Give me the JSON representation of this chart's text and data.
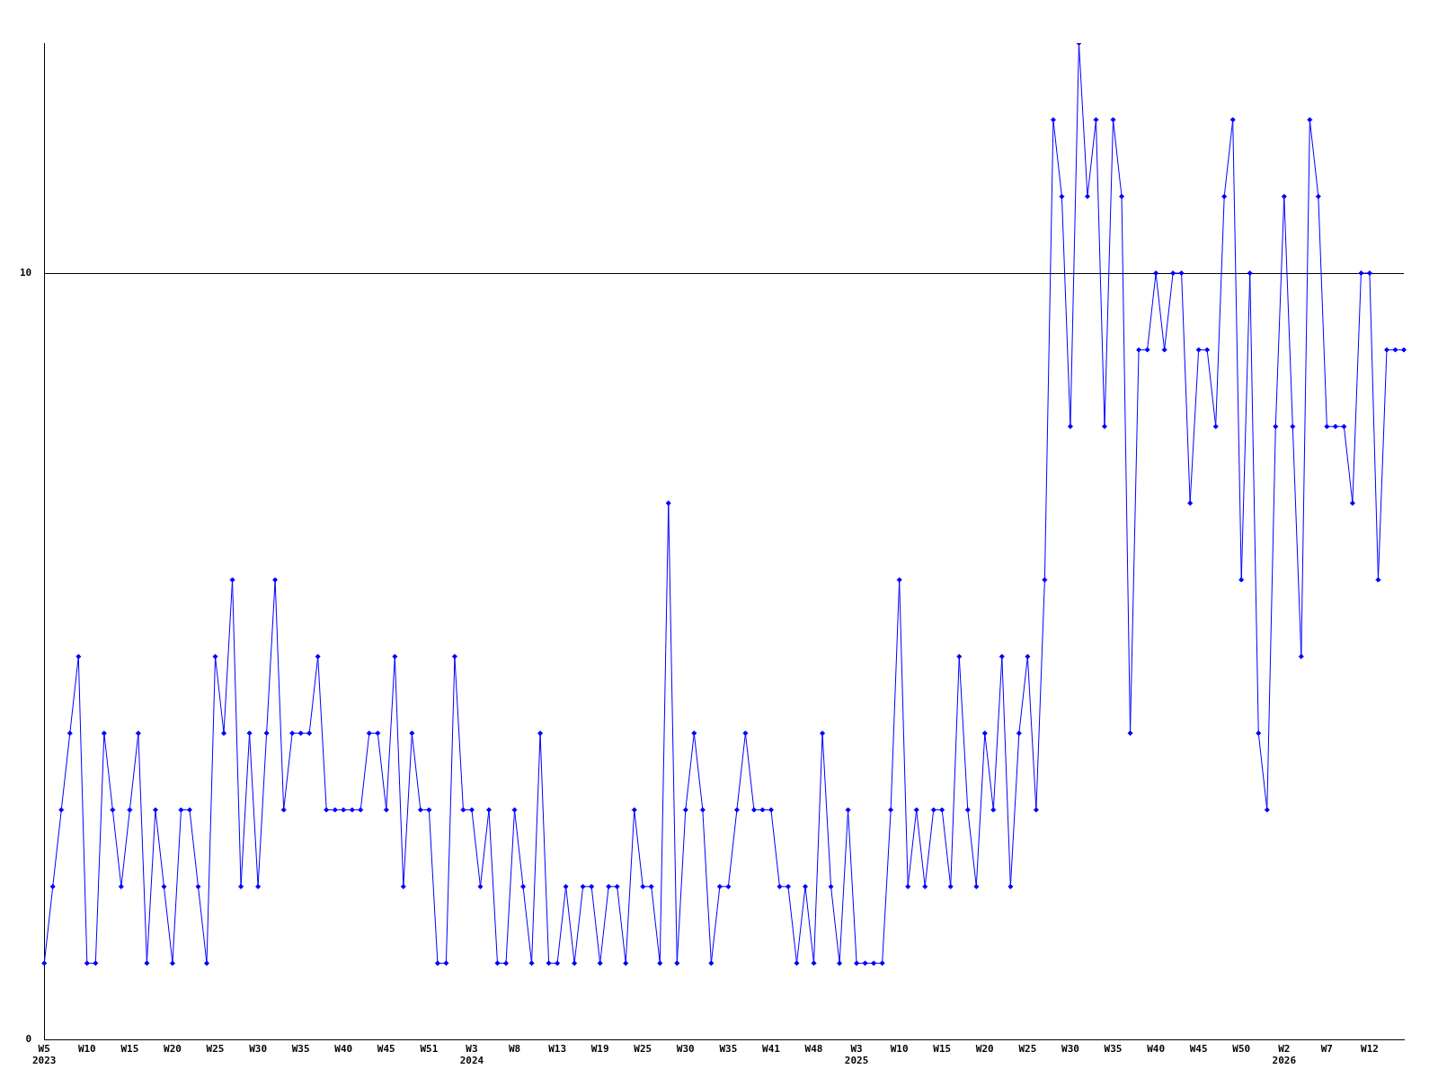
{
  "chart_data": {
    "type": "line",
    "categories": [
      "W5\n2023",
      null,
      null,
      null,
      null,
      "W10",
      null,
      null,
      null,
      null,
      "W15",
      null,
      null,
      null,
      null,
      "W20",
      null,
      null,
      null,
      null,
      "W25",
      null,
      null,
      null,
      null,
      "W30",
      null,
      null,
      null,
      null,
      "W35",
      null,
      null,
      null,
      null,
      "W40",
      null,
      null,
      null,
      null,
      "W45",
      null,
      null,
      null,
      null,
      "W51",
      null,
      null,
      null,
      null,
      "W3\n2024",
      null,
      null,
      null,
      null,
      "W8",
      null,
      null,
      null,
      null,
      "W13",
      null,
      null,
      null,
      null,
      "W19",
      null,
      null,
      null,
      null,
      "W25",
      null,
      null,
      null,
      null,
      "W30",
      null,
      null,
      null,
      null,
      "W35",
      null,
      null,
      null,
      null,
      "W41",
      null,
      null,
      null,
      null,
      "W48",
      null,
      null,
      null,
      null,
      "W3\n2025",
      null,
      null,
      null,
      null,
      "W10",
      null,
      null,
      null,
      null,
      "W15",
      null,
      null,
      null,
      null,
      "W20",
      null,
      null,
      null,
      null,
      "W25",
      null,
      null,
      null,
      null,
      "W30",
      null,
      null,
      null,
      null,
      "W35",
      null,
      null,
      null,
      null,
      "W40",
      null,
      null,
      null,
      null,
      "W45",
      null,
      null,
      null,
      null,
      "W50",
      null,
      null,
      null,
      null,
      "W2\n2026",
      null,
      null,
      null,
      null,
      "W7",
      null,
      null,
      null,
      null,
      "W12",
      null,
      null,
      null,
      null
    ],
    "series": [
      {
        "color": "#0000ff",
        "values": [
          1,
          2,
          3,
          4,
          5,
          1,
          1,
          4,
          3,
          2,
          3,
          4,
          1,
          3,
          2,
          1,
          3,
          3,
          2,
          1,
          5,
          4,
          6,
          2,
          4,
          2,
          4,
          6,
          3,
          4,
          4,
          4,
          5,
          3,
          3,
          3,
          3,
          3,
          4,
          4,
          3,
          5,
          2,
          4,
          3,
          3,
          1,
          1,
          5,
          3,
          3,
          2,
          3,
          1,
          1,
          3,
          2,
          1,
          4,
          1,
          1,
          2,
          1,
          2,
          2,
          1,
          2,
          2,
          1,
          3,
          2,
          2,
          1,
          7,
          1,
          3,
          4,
          3,
          1,
          2,
          2,
          3,
          4,
          3,
          3,
          3,
          2,
          2,
          1,
          2,
          1,
          4,
          2,
          1,
          3,
          1,
          1,
          1,
          1,
          3,
          6,
          2,
          3,
          2,
          3,
          3,
          2,
          5,
          3,
          2,
          4,
          3,
          5,
          2,
          4,
          5,
          3,
          6,
          12,
          11,
          8,
          13,
          11,
          12,
          8,
          12,
          11,
          4,
          9,
          9,
          10,
          9,
          10,
          10,
          7,
          9,
          9,
          8,
          11,
          12,
          6,
          10,
          4,
          3,
          8,
          11,
          8,
          5,
          12,
          11,
          8,
          8,
          8,
          7,
          10,
          10,
          6,
          9,
          9,
          9
        ]
      }
    ],
    "ylim": [
      0,
      13
    ],
    "yticks": [
      0,
      10
    ],
    "grid": "y",
    "marker": "diamond",
    "line_style": "solid",
    "legend": false
  }
}
